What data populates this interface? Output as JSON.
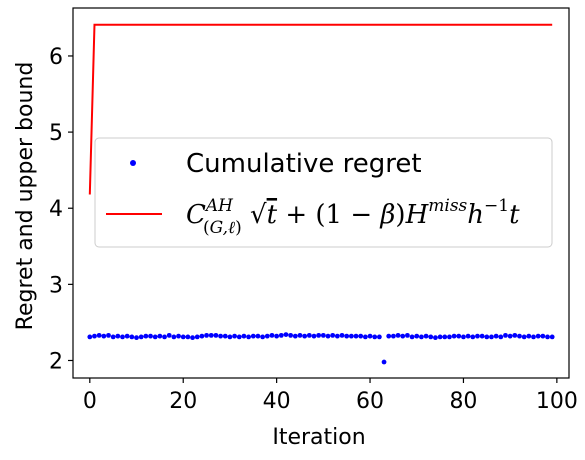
{
  "chart_data": {
    "type": "line",
    "xlabel": "Iteration",
    "ylabel": "Regret and upper bound",
    "xlim": [
      -3.6,
      102.6
    ],
    "ylim": [
      1.77,
      6.63
    ],
    "xticks": [
      0,
      20,
      40,
      60,
      80,
      100
    ],
    "yticks": [
      2,
      3,
      4,
      5,
      6
    ],
    "grid": false,
    "legend_position": "center",
    "series": [
      {
        "name": "Cumulative regret",
        "style": "scatter",
        "color": "#0000ff",
        "x": [
          0,
          1,
          2,
          3,
          4,
          5,
          6,
          7,
          8,
          9,
          10,
          11,
          12,
          13,
          14,
          15,
          16,
          17,
          18,
          19,
          20,
          21,
          22,
          23,
          24,
          25,
          26,
          27,
          28,
          29,
          30,
          31,
          32,
          33,
          34,
          35,
          36,
          37,
          38,
          39,
          40,
          41,
          42,
          43,
          44,
          45,
          46,
          47,
          48,
          49,
          50,
          51,
          52,
          53,
          54,
          55,
          56,
          57,
          58,
          59,
          60,
          61,
          62,
          63,
          64,
          65,
          66,
          67,
          68,
          69,
          70,
          71,
          72,
          73,
          74,
          75,
          76,
          77,
          78,
          79,
          80,
          81,
          82,
          83,
          84,
          85,
          86,
          87,
          88,
          89,
          90,
          91,
          92,
          93,
          94,
          95,
          96,
          97,
          98,
          99
        ],
        "values": [
          2.31,
          2.32,
          2.33,
          2.32,
          2.33,
          2.31,
          2.32,
          2.31,
          2.32,
          2.31,
          2.3,
          2.31,
          2.32,
          2.32,
          2.31,
          2.32,
          2.31,
          2.33,
          2.31,
          2.32,
          2.31,
          2.31,
          2.3,
          2.31,
          2.32,
          2.33,
          2.33,
          2.33,
          2.32,
          2.32,
          2.31,
          2.32,
          2.31,
          2.32,
          2.31,
          2.32,
          2.32,
          2.31,
          2.32,
          2.33,
          2.32,
          2.33,
          2.34,
          2.33,
          2.32,
          2.33,
          2.32,
          2.33,
          2.32,
          2.33,
          2.33,
          2.32,
          2.33,
          2.32,
          2.33,
          2.32,
          2.32,
          2.32,
          2.32,
          2.31,
          2.32,
          2.31,
          2.31,
          1.98,
          2.32,
          2.32,
          2.33,
          2.32,
          2.33,
          2.31,
          2.32,
          2.31,
          2.32,
          2.31,
          2.3,
          2.31,
          2.31,
          2.31,
          2.32,
          2.32,
          2.31,
          2.32,
          2.31,
          2.32,
          2.32,
          2.31,
          2.31,
          2.32,
          2.31,
          2.33,
          2.32,
          2.33,
          2.32,
          2.31,
          2.32,
          2.31,
          2.32,
          2.32,
          2.31,
          2.31
        ]
      },
      {
        "name": "C^{AH}_{(G,ℓ)} √t + (1 − β) H^{miss} h^{−1} t",
        "style": "line",
        "color": "#ff0000",
        "x": [
          0,
          1,
          99
        ],
        "values": [
          4.18,
          6.41,
          6.41
        ]
      }
    ],
    "legend_label_1": "Cumulative regret"
  }
}
